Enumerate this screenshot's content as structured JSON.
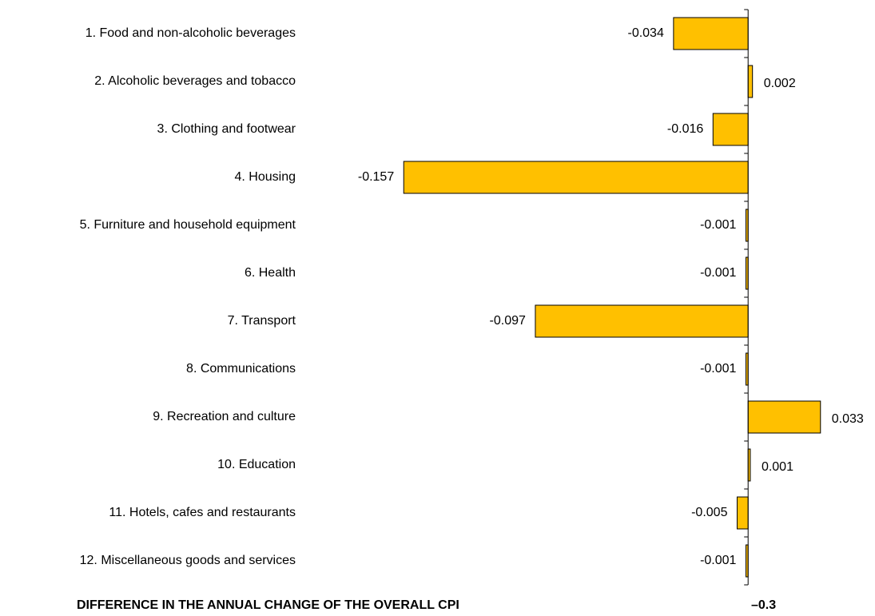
{
  "chart_data": {
    "type": "hbar",
    "categories": [
      "1. Food and non-alcoholic beverages",
      "2. Alcoholic beverages and tobacco",
      "3. Clothing and footwear",
      "4. Housing",
      "5. Furniture and household equipment",
      "6. Health",
      "7. Transport",
      "8. Communications",
      "9. Recreation and culture",
      "10. Education",
      "11. Hotels, cafes and restaurants",
      "12. Miscellaneous goods and services"
    ],
    "values": [
      -0.034,
      0.002,
      -0.016,
      -0.157,
      -0.001,
      -0.001,
      -0.097,
      -0.001,
      0.033,
      0.001,
      -0.005,
      -0.001
    ],
    "color": "#ffc000",
    "xlim": [
      -0.16,
      0.04
    ],
    "footer": "DIFFERENCE  IN THE  ANNUAL  CHANGE  OF THE OVERALL  CPI",
    "total_label": "–0.3"
  }
}
